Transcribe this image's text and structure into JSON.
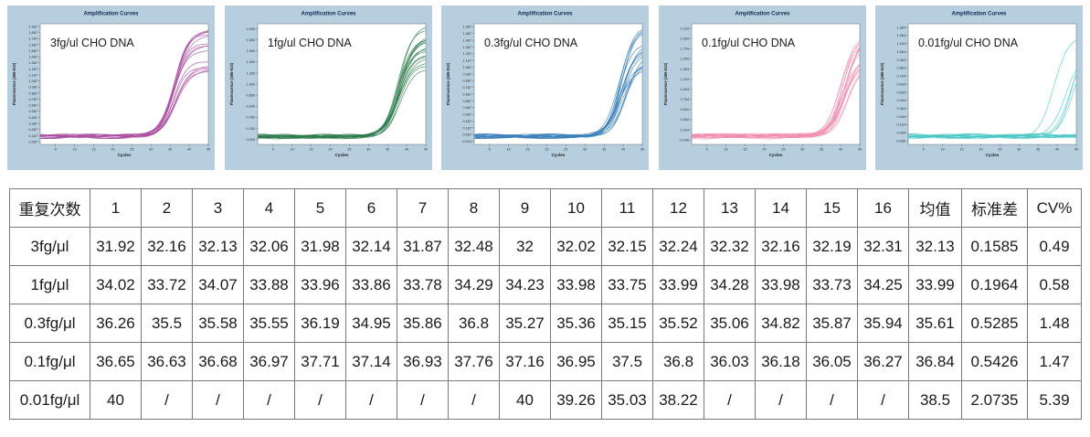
{
  "style": {
    "panel_background": "#b6cede",
    "chart_title_color": "#122a52",
    "plot_border_color": "#60707c",
    "table_border_color": "#7a7a7a"
  },
  "chart_data": [
    {
      "type": "line",
      "title": "Amplification Curves",
      "annotation": "3fg/ul CHO DNA",
      "xlabel": "Cycles",
      "ylabel": "Fluorescence (465-510)",
      "x_ticks": [
        5,
        10,
        15,
        20,
        25,
        30,
        35,
        40,
        45
      ],
      "xlim": [
        1,
        45
      ],
      "y_tick_min": 0.087,
      "y_tick_max": 1.987,
      "y_tick_step": 0.1,
      "line_color": "#a84fa0",
      "n_replicates": 16,
      "replicate_ct_values": [
        31.92,
        32.16,
        32.13,
        32.06,
        31.98,
        32.14,
        31.87,
        32.48,
        32,
        32.02,
        32.15,
        32.24,
        32.32,
        32.16,
        32.19,
        32.31
      ]
    },
    {
      "type": "line",
      "title": "Amplification Curves",
      "annotation": "1fg/ul CHO DNA",
      "xlabel": "Cycles",
      "ylabel": "Fluorescence (465-510)",
      "x_ticks": [
        5,
        10,
        15,
        20,
        25,
        30,
        35,
        40,
        45
      ],
      "xlim": [
        1,
        45
      ],
      "y_tick_min": 0.05,
      "y_tick_max": 2.05,
      "y_tick_step": 0.2,
      "line_color": "#2e7b4e",
      "n_replicates": 16,
      "replicate_ct_values": [
        34.02,
        33.72,
        34.07,
        33.88,
        33.96,
        33.86,
        33.78,
        34.29,
        34.23,
        33.98,
        33.75,
        33.99,
        34.28,
        33.98,
        33.73,
        34.25
      ]
    },
    {
      "type": "line",
      "title": "Amplification Curves",
      "annotation": "0.3fg/ul CHO DNA",
      "xlabel": "Cycles",
      "ylabel": "Fluorescence (465-510)",
      "x_ticks": [
        5,
        10,
        15,
        20,
        25,
        30,
        35,
        40,
        45
      ],
      "xlim": [
        1,
        45
      ],
      "y_tick_min": -0.013,
      "y_tick_max": 1.687,
      "y_tick_step": 0.1,
      "line_color": "#3b7fb9",
      "n_replicates": 16,
      "replicate_ct_values": [
        36.26,
        35.5,
        35.58,
        35.55,
        36.19,
        34.95,
        35.86,
        36.8,
        35.27,
        35.36,
        35.15,
        35.52,
        35.06,
        34.82,
        35.87,
        35.94
      ]
    },
    {
      "type": "line",
      "title": "Amplification Curves",
      "annotation": "0.1fg/ul CHO DNA",
      "xlabel": "Cycles",
      "ylabel": "Fluorescence (465-510)",
      "x_ticks": [
        5,
        10,
        15,
        20,
        25,
        30,
        35,
        40,
        45
      ],
      "xlim": [
        1,
        45
      ],
      "y_tick_min": -0.046,
      "y_tick_max": 2.154,
      "y_tick_step": 0.2,
      "line_color": "#f08cae",
      "n_replicates": 16,
      "replicate_ct_values": [
        36.65,
        36.63,
        36.68,
        36.97,
        37.71,
        37.14,
        36.93,
        37.76,
        37.16,
        36.95,
        37.5,
        36.8,
        36.03,
        36.18,
        36.05,
        36.27
      ]
    },
    {
      "type": "line",
      "title": "Amplification Curves",
      "annotation": "0.01fg/ul CHO DNA",
      "xlabel": "Cycles",
      "ylabel": "Fluorescence (465-510)",
      "x_ticks": [
        5,
        10,
        15,
        20,
        25,
        30,
        35,
        40,
        45
      ],
      "xlim": [
        1,
        45
      ],
      "y_tick_min": -0.036,
      "y_tick_max": 1.364,
      "y_tick_step": 0.1,
      "line_color": "#4ec7c7",
      "n_replicates": 16,
      "replicate_ct_values": [
        40,
        null,
        null,
        null,
        null,
        null,
        null,
        null,
        40,
        39.26,
        35.03,
        38.22,
        null,
        null,
        null,
        null
      ]
    }
  ],
  "table": {
    "header": [
      "重复次数",
      "1",
      "2",
      "3",
      "4",
      "5",
      "6",
      "7",
      "8",
      "9",
      "10",
      "11",
      "12",
      "13",
      "14",
      "15",
      "16",
      "均值",
      "标准差",
      "CV%"
    ],
    "rows": [
      [
        "3fg/μl",
        "31.92",
        "32.16",
        "32.13",
        "32.06",
        "31.98",
        "32.14",
        "31.87",
        "32.48",
        "32",
        "32.02",
        "32.15",
        "32.24",
        "32.32",
        "32.16",
        "32.19",
        "32.31",
        "32.13",
        "0.1585",
        "0.49"
      ],
      [
        "1fg/μl",
        "34.02",
        "33.72",
        "34.07",
        "33.88",
        "33.96",
        "33.86",
        "33.78",
        "34.29",
        "34.23",
        "33.98",
        "33.75",
        "33.99",
        "34.28",
        "33.98",
        "33.73",
        "34.25",
        "33.99",
        "0.1964",
        "0.58"
      ],
      [
        "0.3fg/μl",
        "36.26",
        "35.5",
        "35.58",
        "35.55",
        "36.19",
        "34.95",
        "35.86",
        "36.8",
        "35.27",
        "35.36",
        "35.15",
        "35.52",
        "35.06",
        "34.82",
        "35.87",
        "35.94",
        "35.61",
        "0.5285",
        "1.48"
      ],
      [
        "0.1fg/μl",
        "36.65",
        "36.63",
        "36.68",
        "36.97",
        "37.71",
        "37.14",
        "36.93",
        "37.76",
        "37.16",
        "36.95",
        "37.5",
        "36.8",
        "36.03",
        "36.18",
        "36.05",
        "36.27",
        "36.84",
        "0.5426",
        "1.47"
      ],
      [
        "0.01fg/μl",
        "40",
        "/",
        "/",
        "/",
        "/",
        "/",
        "/",
        "/",
        "40",
        "39.26",
        "35.03",
        "38.22",
        "/",
        "/",
        "/",
        "/",
        "38.5",
        "2.0735",
        "5.39"
      ]
    ]
  }
}
